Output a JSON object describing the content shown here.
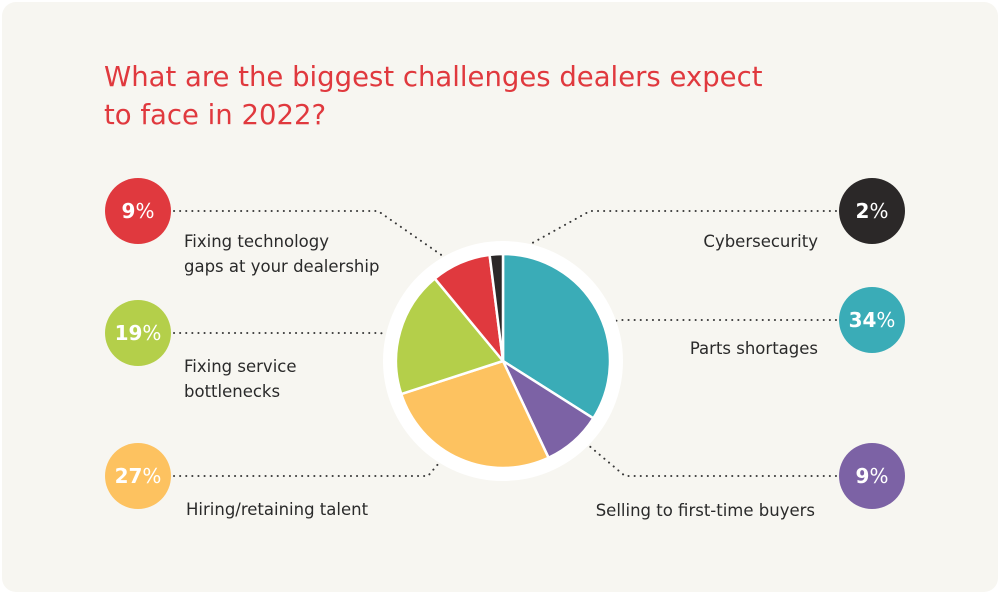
{
  "title_lines": [
    "What are the biggest challenges dealers expect",
    "to face in 2022?"
  ],
  "colors": {
    "background": "#f7f6f1",
    "title": "#e0393e",
    "dots": "#3a3a3a"
  },
  "chart_data": {
    "type": "pie",
    "title": "What are the biggest challenges dealers expect to face in 2022?",
    "unit": "%",
    "start_angle_deg": 0,
    "direction": "clockwise",
    "legend": "callouts",
    "slices": [
      {
        "label": "Parts shortages",
        "label_lines": [
          "Parts shortages"
        ],
        "value": 34,
        "value_text": "34",
        "color": "#3aacb7",
        "side": "right"
      },
      {
        "label": "Selling to first-time buyers",
        "label_lines": [
          "Selling to first-time buyers"
        ],
        "value": 9,
        "value_text": "9",
        "color": "#7c62a5",
        "side": "right"
      },
      {
        "label": "Hiring/retaining talent",
        "label_lines": [
          "Hiring/retaining talent"
        ],
        "value": 27,
        "value_text": "27",
        "color": "#fdc260",
        "side": "left"
      },
      {
        "label": "Fixing service bottlenecks",
        "label_lines": [
          "Fixing service",
          "bottlenecks"
        ],
        "value": 19,
        "value_text": "19",
        "color": "#b4cf4a",
        "side": "left"
      },
      {
        "label": "Fixing technology gaps at your dealership",
        "label_lines": [
          "Fixing technology",
          "gaps at your dealership"
        ],
        "value": 9,
        "value_text": "9",
        "color": "#e0393e",
        "side": "left"
      },
      {
        "label": "Cybersecurity",
        "label_lines": [
          "Cybersecurity"
        ],
        "value": 2,
        "value_text": "2",
        "color": "#2b2828",
        "side": "right"
      }
    ]
  }
}
